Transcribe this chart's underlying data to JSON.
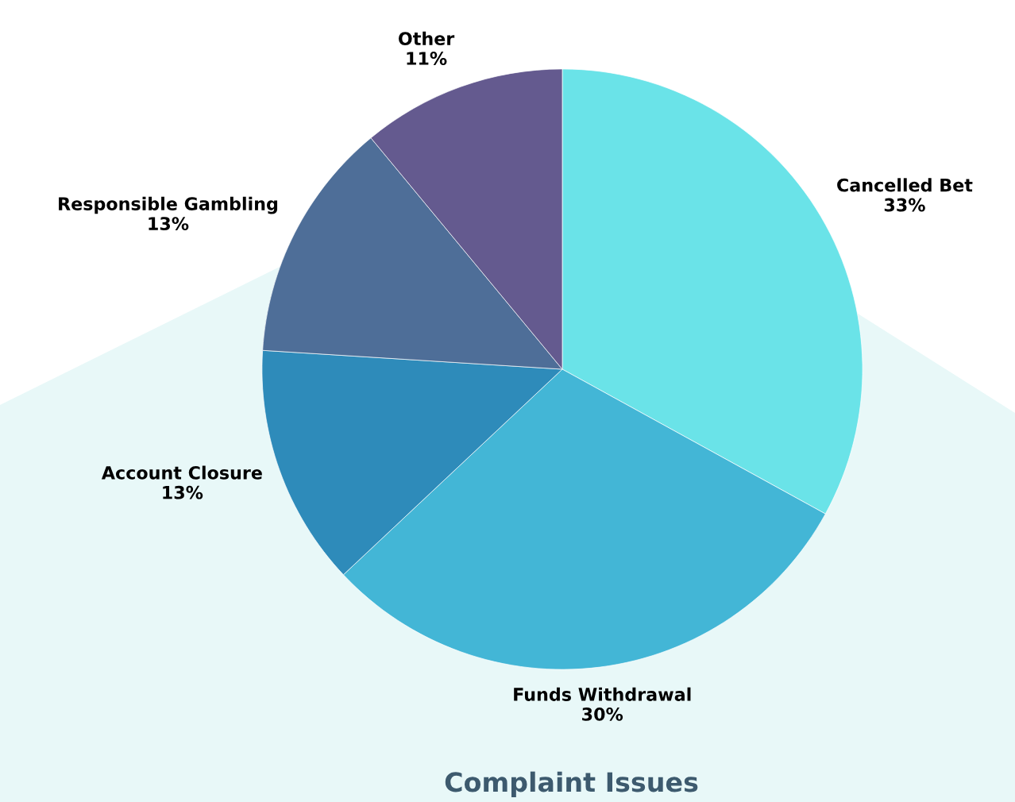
{
  "chart_data": {
    "type": "pie",
    "title": "Complaint Issues",
    "categories": [
      "Cancelled Bet",
      "Funds Withdrawal",
      "Account Closure",
      "Responsible Gambling",
      "Other"
    ],
    "values": [
      33,
      30,
      13,
      13,
      11
    ],
    "colors": [
      "#6ae3e8",
      "#43b6d6",
      "#2e8bba",
      "#4e6e98",
      "#645a8f"
    ],
    "value_labels": [
      "33%",
      "30%",
      "13%",
      "13%",
      "11%"
    ],
    "legend": false
  }
}
